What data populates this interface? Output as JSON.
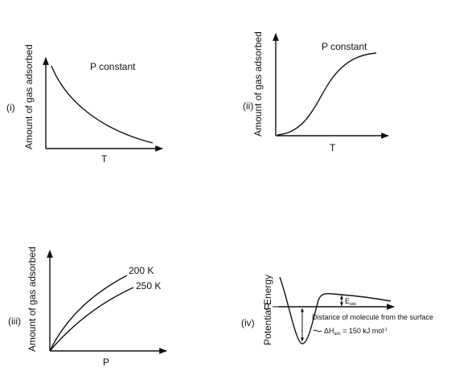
{
  "panels": [
    {
      "id": "i",
      "label": "(i)",
      "ylabel": "Amount of gas adsorbed",
      "xlabel": "T",
      "annotation": "P constant"
    },
    {
      "id": "ii",
      "label": "(ii)",
      "ylabel": "Amount of gas adsorbed",
      "xlabel": "T",
      "annotation": "P constant"
    },
    {
      "id": "iii",
      "label": "(iii)",
      "ylabel": "Amount of gas adsorbed",
      "xlabel": "P",
      "series": [
        "200 K",
        "250 K"
      ]
    },
    {
      "id": "iv",
      "label": "(iv)",
      "ylabel": "Potential Energy",
      "zero_label": "0",
      "distance_label": "Distance of molecule from the surface",
      "ea_main": "E",
      "ea_sub": "ads",
      "dh_main": "ΔH",
      "dh_sub": "ads",
      "dh_value": " = 150 kJ mol",
      "dh_sup": "-1"
    }
  ]
}
